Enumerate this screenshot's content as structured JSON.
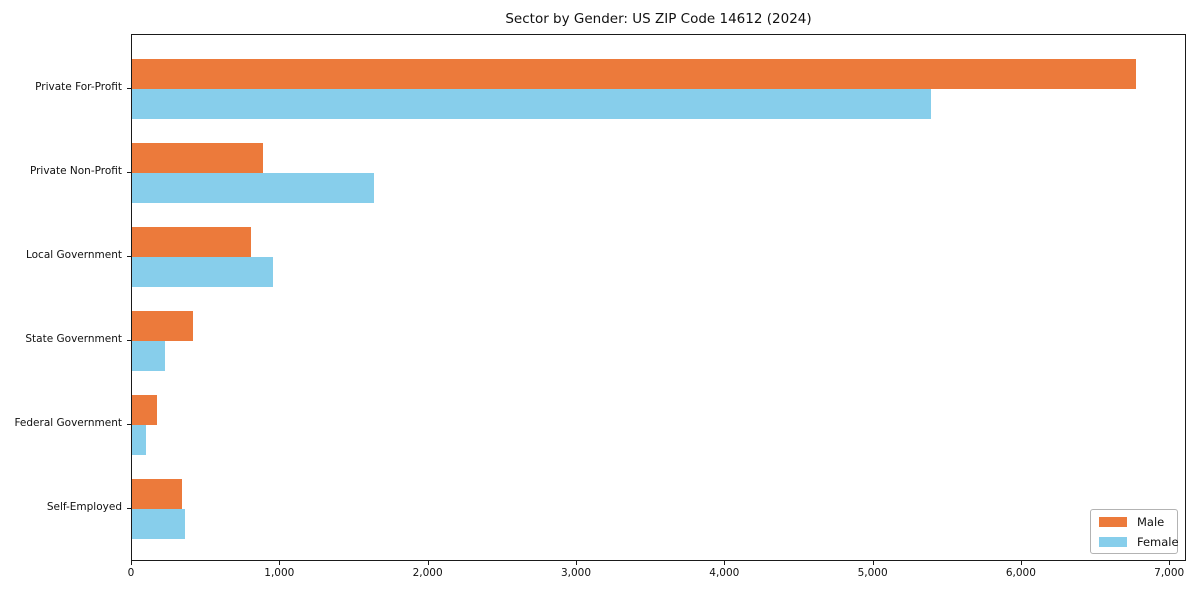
{
  "chart_data": {
    "type": "bar",
    "orientation": "horizontal",
    "title": "Sector by Gender: US ZIP Code 14612 (2024)",
    "categories": [
      "Private For-Profit",
      "Private Non-Profit",
      "Local Government",
      "State Government",
      "Federal Government",
      "Self-Employed"
    ],
    "series": [
      {
        "name": "Male",
        "color": "#EC7A3B",
        "values": [
          6770,
          880,
          800,
          410,
          170,
          340
        ]
      },
      {
        "name": "Female",
        "color": "#87CEEB",
        "values": [
          5390,
          1630,
          950,
          220,
          95,
          360
        ]
      }
    ],
    "xlabel": "",
    "ylabel": "",
    "xlim": [
      0,
      7113
    ],
    "x_ticks": [
      0,
      1000,
      2000,
      3000,
      4000,
      5000,
      6000,
      7000
    ],
    "x_tick_labels": [
      "0",
      "1,000",
      "2,000",
      "3,000",
      "4,000",
      "5,000",
      "6,000",
      "7,000"
    ],
    "grid": false,
    "legend_position": "lower right"
  }
}
